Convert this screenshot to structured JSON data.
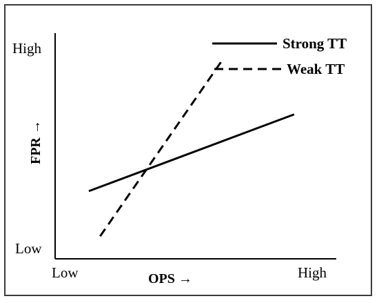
{
  "chart_data": {
    "type": "line",
    "xlabel": "OPS →",
    "ylabel": "FPR →",
    "x_tick_labels": [
      "Low",
      "High"
    ],
    "y_tick_labels": [
      "High",
      "Low"
    ],
    "xlim": [
      0,
      100
    ],
    "ylim": [
      0,
      100
    ],
    "legend_position": "top-right",
    "series": [
      {
        "name": "Strong TT",
        "style": "solid",
        "color": "#000000",
        "x": [
          12,
          85
        ],
        "y": [
          30,
          64
        ]
      },
      {
        "name": "Weak TT",
        "style": "dashed",
        "color": "#000000",
        "x": [
          16,
          60
        ],
        "y": [
          10,
          89
        ]
      }
    ]
  }
}
